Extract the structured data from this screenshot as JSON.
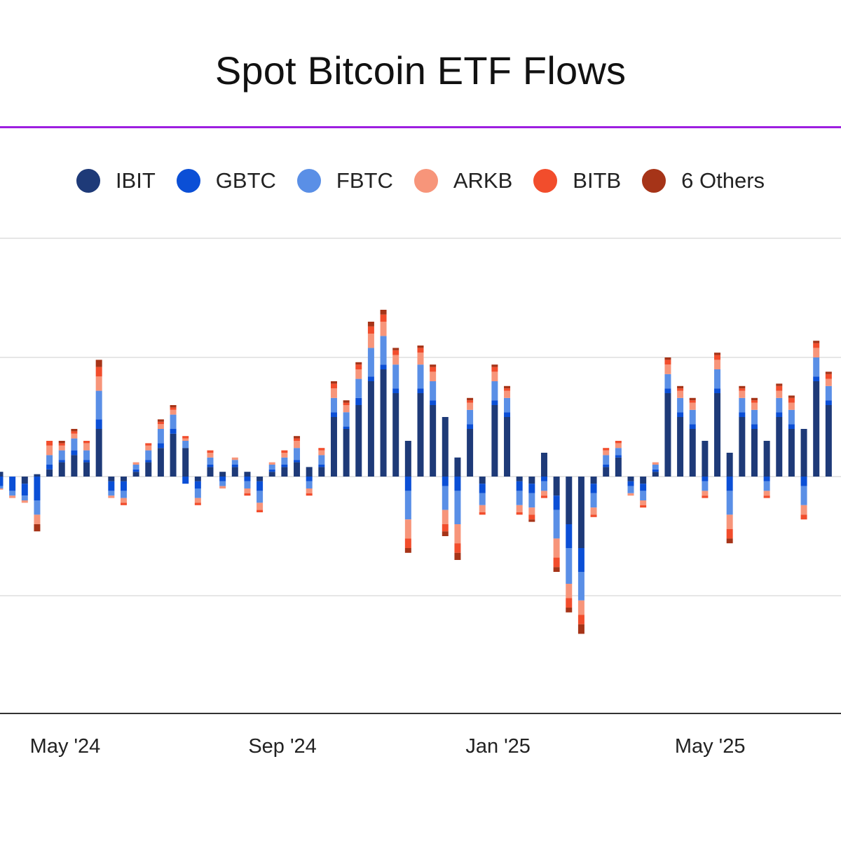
{
  "title": "Spot Bitcoin ETF Flows",
  "colors": {
    "accent_rule": "#9d1fe0",
    "grid": "#e6e6e6",
    "axis": "#333333"
  },
  "chart_data": {
    "type": "bar",
    "stacked": true,
    "title": "Spot Bitcoin ETF Flows",
    "xlabel": "",
    "ylabel": "",
    "x_range": [
      "2024-04-08",
      "2025-07-28"
    ],
    "ylim": [
      -1000,
      1000
    ],
    "grid": true,
    "legend_position": "top",
    "x_ticks": [
      {
        "date": "2024-05-01",
        "label": "May '24"
      },
      {
        "date": "2024-09-01",
        "label": "Sep '24"
      },
      {
        "date": "2025-01-01",
        "label": "Jan '25"
      },
      {
        "date": "2025-05-01",
        "label": "May '25"
      }
    ],
    "y_grid_values": [
      1000,
      500,
      0,
      -500
    ],
    "series": [
      {
        "name": "IBIT",
        "color": "#1e3a78"
      },
      {
        "name": "GBTC",
        "color": "#0b4fd6"
      },
      {
        "name": "FBTC",
        "color": "#5a8fe6"
      },
      {
        "name": "ARKB",
        "color": "#f7957a"
      },
      {
        "name": "BITB",
        "color": "#f24d2c"
      },
      {
        "name": "6 Others",
        "color": "#a63418"
      }
    ],
    "bars": [
      {
        "date": "2024-04-08",
        "values": [
          20,
          -40,
          -10,
          -5,
          0,
          0
        ]
      },
      {
        "date": "2024-04-15",
        "values": [
          0,
          -60,
          -20,
          -10,
          0,
          0
        ]
      },
      {
        "date": "2024-04-22",
        "values": [
          -30,
          -50,
          -20,
          -10,
          0,
          0
        ]
      },
      {
        "date": "2024-04-29",
        "values": [
          10,
          -100,
          -60,
          -40,
          0,
          -30
        ]
      },
      {
        "date": "2024-05-06",
        "values": [
          30,
          20,
          40,
          40,
          20,
          0
        ]
      },
      {
        "date": "2024-05-13",
        "values": [
          60,
          10,
          40,
          20,
          10,
          10
        ]
      },
      {
        "date": "2024-05-20",
        "values": [
          90,
          20,
          50,
          20,
          10,
          10
        ]
      },
      {
        "date": "2024-05-27",
        "values": [
          60,
          10,
          40,
          30,
          10,
          0
        ]
      },
      {
        "date": "2024-06-03",
        "values": [
          200,
          40,
          120,
          60,
          40,
          30
        ]
      },
      {
        "date": "2024-06-10",
        "values": [
          -20,
          -40,
          -20,
          -10,
          0,
          0
        ]
      },
      {
        "date": "2024-06-17",
        "values": [
          -20,
          -40,
          -30,
          -20,
          -10,
          0
        ]
      },
      {
        "date": "2024-06-24",
        "values": [
          20,
          10,
          20,
          10,
          0,
          0
        ]
      },
      {
        "date": "2024-07-01",
        "values": [
          60,
          10,
          40,
          20,
          10,
          0
        ]
      },
      {
        "date": "2024-07-08",
        "values": [
          120,
          20,
          60,
          20,
          10,
          10
        ]
      },
      {
        "date": "2024-07-15",
        "values": [
          180,
          20,
          60,
          20,
          10,
          10
        ]
      },
      {
        "date": "2024-07-22",
        "values": [
          120,
          -30,
          30,
          10,
          10,
          0
        ]
      },
      {
        "date": "2024-07-29",
        "values": [
          -20,
          -30,
          -40,
          -20,
          -10,
          0
        ]
      },
      {
        "date": "2024-08-05",
        "values": [
          40,
          10,
          30,
          20,
          10,
          0
        ]
      },
      {
        "date": "2024-08-12",
        "values": [
          20,
          -20,
          -20,
          -10,
          0,
          0
        ]
      },
      {
        "date": "2024-08-19",
        "values": [
          40,
          10,
          20,
          10,
          0,
          0
        ]
      },
      {
        "date": "2024-08-26",
        "values": [
          20,
          -20,
          -30,
          -20,
          -10,
          0
        ]
      },
      {
        "date": "2024-09-02",
        "values": [
          -20,
          -40,
          -50,
          -30,
          -10,
          0
        ]
      },
      {
        "date": "2024-09-09",
        "values": [
          20,
          10,
          20,
          10,
          0,
          0
        ]
      },
      {
        "date": "2024-09-16",
        "values": [
          40,
          10,
          30,
          20,
          10,
          0
        ]
      },
      {
        "date": "2024-09-23",
        "values": [
          60,
          10,
          50,
          30,
          10,
          10
        ]
      },
      {
        "date": "2024-09-30",
        "values": [
          40,
          -20,
          -30,
          -20,
          -10,
          0
        ]
      },
      {
        "date": "2024-10-07",
        "values": [
          40,
          10,
          40,
          20,
          10,
          0
        ]
      },
      {
        "date": "2024-10-14",
        "values": [
          250,
          20,
          60,
          40,
          20,
          10
        ]
      },
      {
        "date": "2024-10-21",
        "values": [
          200,
          10,
          60,
          30,
          10,
          10
        ]
      },
      {
        "date": "2024-10-28",
        "values": [
          300,
          30,
          80,
          40,
          20,
          10
        ]
      },
      {
        "date": "2024-11-04",
        "values": [
          400,
          20,
          120,
          60,
          30,
          20
        ]
      },
      {
        "date": "2024-11-11",
        "values": [
          450,
          20,
          120,
          60,
          30,
          20
        ]
      },
      {
        "date": "2024-11-18",
        "values": [
          350,
          20,
          100,
          40,
          20,
          10
        ]
      },
      {
        "date": "2024-11-25",
        "values": [
          150,
          -60,
          -120,
          -80,
          -40,
          -20
        ]
      },
      {
        "date": "2024-12-02",
        "values": [
          350,
          20,
          100,
          50,
          20,
          10
        ]
      },
      {
        "date": "2024-12-09",
        "values": [
          300,
          20,
          80,
          40,
          20,
          10
        ]
      },
      {
        "date": "2024-12-16",
        "values": [
          250,
          -40,
          -100,
          -60,
          -30,
          -20
        ]
      },
      {
        "date": "2024-12-23",
        "values": [
          80,
          -60,
          -140,
          -80,
          -40,
          -30
        ]
      },
      {
        "date": "2024-12-30",
        "values": [
          200,
          20,
          60,
          30,
          10,
          10
        ]
      },
      {
        "date": "2025-01-06",
        "values": [
          -30,
          -40,
          -50,
          -30,
          -10,
          0
        ]
      },
      {
        "date": "2025-01-13",
        "values": [
          300,
          20,
          80,
          40,
          20,
          10
        ]
      },
      {
        "date": "2025-01-20",
        "values": [
          250,
          20,
          60,
          30,
          10,
          10
        ]
      },
      {
        "date": "2025-01-27",
        "values": [
          -20,
          -40,
          -60,
          -30,
          -10,
          0
        ]
      },
      {
        "date": "2025-02-03",
        "values": [
          -30,
          -40,
          -60,
          -30,
          -20,
          -10
        ]
      },
      {
        "date": "2025-02-10",
        "values": [
          100,
          -20,
          -40,
          -20,
          -10,
          0
        ]
      },
      {
        "date": "2025-02-17",
        "values": [
          -80,
          -60,
          -120,
          -80,
          -40,
          -20
        ]
      },
      {
        "date": "2025-02-24",
        "values": [
          -200,
          -100,
          -150,
          -60,
          -40,
          -20
        ]
      },
      {
        "date": "2025-03-03",
        "values": [
          -300,
          -100,
          -120,
          -60,
          -40,
          -40
        ]
      },
      {
        "date": "2025-03-10",
        "values": [
          -30,
          -40,
          -60,
          -30,
          -10,
          0
        ]
      },
      {
        "date": "2025-03-17",
        "values": [
          40,
          10,
          40,
          20,
          10,
          0
        ]
      },
      {
        "date": "2025-03-24",
        "values": [
          80,
          10,
          30,
          20,
          10,
          0
        ]
      },
      {
        "date": "2025-03-31",
        "values": [
          -20,
          -20,
          -30,
          -10,
          0,
          0
        ]
      },
      {
        "date": "2025-04-07",
        "values": [
          -30,
          -30,
          -40,
          -20,
          -10,
          0
        ]
      },
      {
        "date": "2025-04-14",
        "values": [
          20,
          10,
          20,
          10,
          0,
          0
        ]
      },
      {
        "date": "2025-04-21",
        "values": [
          350,
          20,
          60,
          40,
          20,
          10
        ]
      },
      {
        "date": "2025-04-28",
        "values": [
          250,
          20,
          60,
          30,
          10,
          10
        ]
      },
      {
        "date": "2025-05-05",
        "values": [
          200,
          20,
          60,
          30,
          10,
          10
        ]
      },
      {
        "date": "2025-05-12",
        "values": [
          150,
          -20,
          -40,
          -20,
          -10,
          0
        ]
      },
      {
        "date": "2025-05-19",
        "values": [
          350,
          20,
          80,
          40,
          20,
          10
        ]
      },
      {
        "date": "2025-05-26",
        "values": [
          100,
          -60,
          -100,
          -60,
          -40,
          -20
        ]
      },
      {
        "date": "2025-06-02",
        "values": [
          250,
          20,
          60,
          30,
          10,
          10
        ]
      },
      {
        "date": "2025-06-09",
        "values": [
          200,
          20,
          60,
          30,
          10,
          10
        ]
      },
      {
        "date": "2025-06-16",
        "values": [
          150,
          -20,
          -40,
          -20,
          -10,
          0
        ]
      },
      {
        "date": "2025-06-23",
        "values": [
          250,
          20,
          60,
          30,
          20,
          10
        ]
      },
      {
        "date": "2025-06-30",
        "values": [
          200,
          20,
          60,
          30,
          20,
          10
        ]
      },
      {
        "date": "2025-07-07",
        "values": [
          200,
          -40,
          -80,
          -40,
          -20,
          0
        ]
      },
      {
        "date": "2025-07-14",
        "values": [
          400,
          20,
          80,
          40,
          20,
          10
        ]
      },
      {
        "date": "2025-07-21",
        "values": [
          300,
          20,
          60,
          30,
          20,
          10
        ]
      }
    ]
  }
}
